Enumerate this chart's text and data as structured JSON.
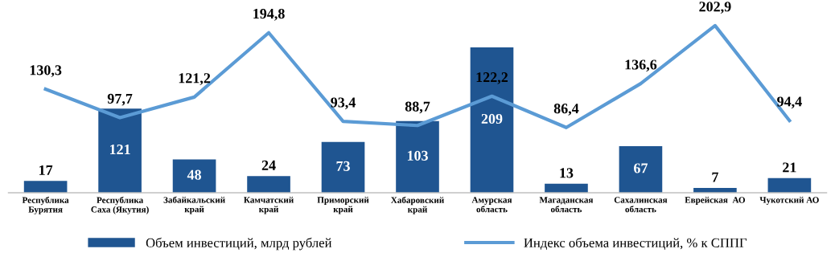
{
  "chart_data": {
    "type": "bar",
    "categories": [
      "Республика\nБурятия",
      "Республика\nСаха (Якутия)",
      "Забайкальский\nкрай",
      "Камчатский\nкрай",
      "Приморский\nкрай",
      "Хабаровский\nкрай",
      "Амурская\nобласть",
      "Магаданская\nобласть",
      "Сахалинская\nобласть",
      "Еврейская  АО",
      "Чукотский АО"
    ],
    "series": [
      {
        "name": "Объем инвестиций, млрд рублей",
        "color": "#1f5591",
        "values": [
          17,
          121,
          48,
          24,
          73,
          103,
          209,
          13,
          67,
          7,
          21
        ]
      },
      {
        "name": "Индекс объема инвестиций, % к СППГ",
        "type": "line",
        "axis": "y2",
        "color": "#5b9bd5",
        "values": [
          130.3,
          97.7,
          121.2,
          194.8,
          93.4,
          88.7,
          122.2,
          86.4,
          136.6,
          202.9,
          94.4
        ],
        "value_labels": [
          "130,3",
          "97,7",
          "121,2",
          "194,8",
          "93,4",
          "88,7",
          "122,2",
          "86,4",
          "136,6",
          "202,9",
          "94,4"
        ]
      }
    ],
    "data_labels": true,
    "legend": "bottom",
    "grid": false,
    "tick_labels": "x",
    "marker": "none"
  }
}
